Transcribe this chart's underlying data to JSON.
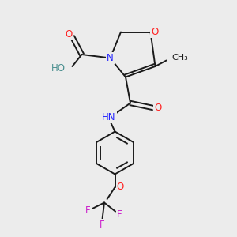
{
  "background_color": "#ececec",
  "bond_color": "#1a1a1a",
  "N_color": "#2222ff",
  "O_color": "#ff2222",
  "F_color": "#cc22cc",
  "H_color": "#4a8f8f",
  "figsize": [
    3.0,
    3.0
  ],
  "dpi": 100,
  "xlim": [
    0,
    10
  ],
  "ylim": [
    0,
    10
  ]
}
